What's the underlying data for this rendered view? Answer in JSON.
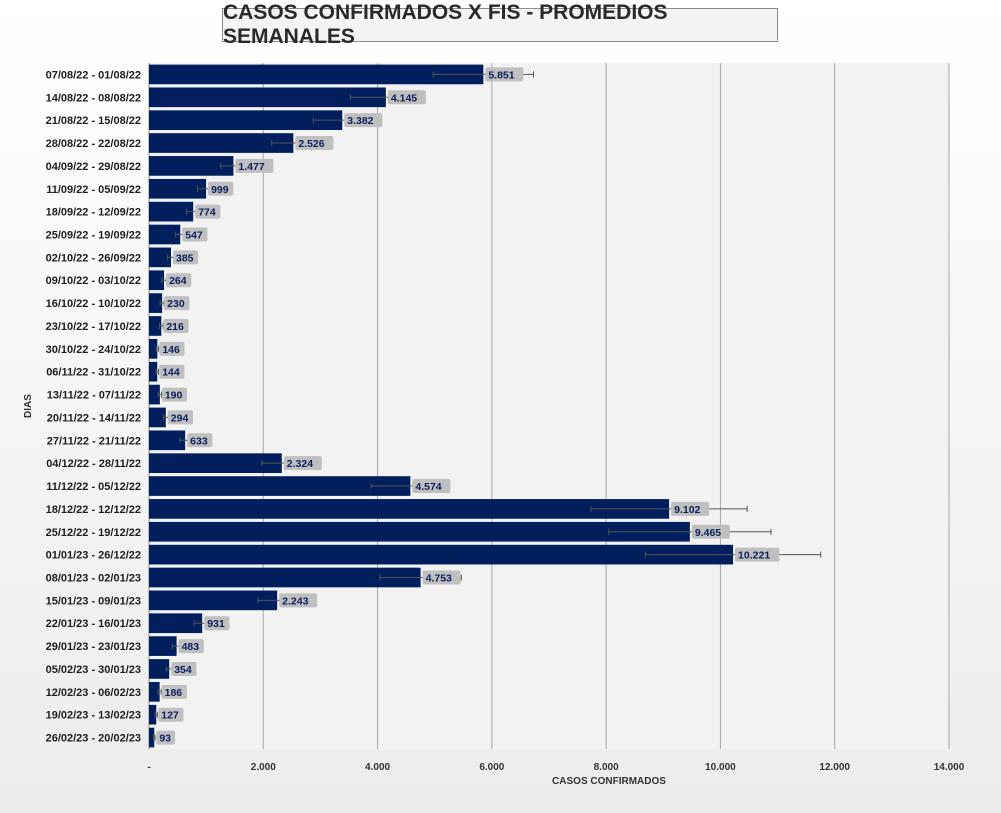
{
  "chart_data": {
    "type": "bar",
    "orientation": "horizontal",
    "title": "CASOS CONFIRMADOS X FIS - PROMEDIOS SEMANALES",
    "xlabel": "CASOS CONFIRMADOS",
    "ylabel": "DIAS",
    "xlim": [
      0,
      14000
    ],
    "x_ticks": [
      0,
      2000,
      4000,
      6000,
      8000,
      10000,
      12000,
      14000
    ],
    "x_tick_labels": [
      "-",
      "2.000",
      "4.000",
      "6.000",
      "8.000",
      "10.000",
      "12.000",
      "14.000"
    ],
    "grid": true,
    "error_bars": true,
    "bar_color": "#001f5c",
    "categories": [
      "07/08/22 - 01/08/22",
      "14/08/22 - 08/08/22",
      "21/08/22 - 15/08/22",
      "28/08/22 - 22/08/22",
      "04/09/22 - 29/08/22",
      "11/09/22 - 05/09/22",
      "18/09/22 - 12/09/22",
      "25/09/22 - 19/09/22",
      "02/10/22 - 26/09/22",
      "09/10/22 - 03/10/22",
      "16/10/22 - 10/10/22",
      "23/10/22 - 17/10/22",
      "30/10/22 - 24/10/22",
      "06/11/22 - 31/10/22",
      "13/11/22 - 07/11/22",
      "20/11/22 - 14/11/22",
      "27/11/22 - 21/11/22",
      "04/12/22 - 28/11/22",
      "11/12/22 - 05/12/22",
      "18/12/22 - 12/12/22",
      "25/12/22 - 19/12/22",
      "01/01/23 - 26/12/22",
      "08/01/23 - 02/01/23",
      "15/01/23 - 09/01/23",
      "22/01/23 - 16/01/23",
      "29/01/23 - 23/01/23",
      "05/02/23 - 30/01/23",
      "12/02/23 - 06/02/23",
      "19/02/23 - 13/02/23",
      "26/02/23 - 20/02/23"
    ],
    "values": [
      5851,
      4145,
      3382,
      2526,
      1477,
      999,
      774,
      547,
      385,
      264,
      230,
      216,
      146,
      144,
      190,
      294,
      633,
      2324,
      4574,
      9102,
      9465,
      10221,
      4753,
      2243,
      931,
      483,
      354,
      186,
      127,
      93
    ],
    "value_labels": [
      "5.851",
      "4.145",
      "3.382",
      "2.526",
      "1.477",
      "999",
      "774",
      "547",
      "385",
      "264",
      "230",
      "216",
      "146",
      "144",
      "190",
      "294",
      "633",
      "2.324",
      "4.574",
      "9.102",
      "9.465",
      "10.221",
      "4.753",
      "2.243",
      "931",
      "483",
      "354",
      "186",
      "127",
      "93"
    ]
  }
}
